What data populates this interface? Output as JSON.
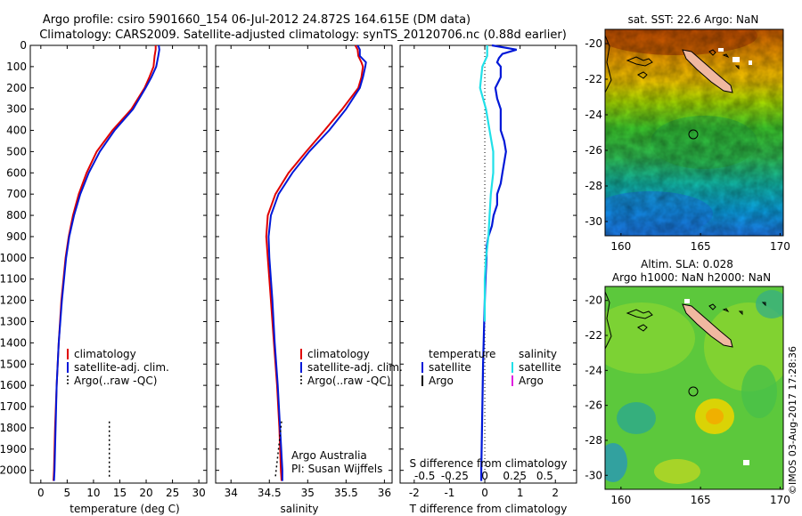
{
  "header": {
    "line1": "Argo profile: csiro 5901660_154 06-Jul-2012 24.872S 164.615E (DM data)",
    "line2": "Climatology: CARS2009. Satellite-adjusted climatology: synTS_20120706.nc (0.88d earlier)"
  },
  "credit": "©IMOS 03-Aug-2017 17:28:36",
  "colors": {
    "climatology": "#e00000",
    "satellite": "#0018d8",
    "argo": "#000000",
    "sal_satellite": "#20e0e8",
    "sal_argo": "#e020e0"
  },
  "chart_data": [
    {
      "type": "line",
      "id": "temperature",
      "xlabel": "temperature (deg C)",
      "xlim": [
        -2,
        31.5
      ],
      "ylim": [
        2060,
        0
      ],
      "xticks": [
        0,
        5,
        10,
        15,
        20,
        25,
        30
      ],
      "yticks": [
        0,
        100,
        200,
        300,
        400,
        500,
        600,
        700,
        800,
        900,
        1000,
        1100,
        1200,
        1300,
        1400,
        1500,
        1600,
        1700,
        1800,
        1900,
        2000
      ],
      "legend": [
        "climatology",
        "satellite-adj. clim.",
        "Argo(..raw -QC)"
      ],
      "series": [
        {
          "name": "climatology",
          "depth": [
            0,
            20,
            50,
            100,
            150,
            200,
            300,
            400,
            500,
            600,
            700,
            800,
            900,
            1000,
            1200,
            1400,
            1600,
            1800,
            2000,
            2050
          ],
          "values": [
            21.8,
            21.8,
            21.6,
            21.4,
            20.6,
            19.7,
            17.2,
            13.6,
            10.6,
            8.7,
            7.2,
            6.1,
            5.3,
            4.7,
            3.9,
            3.4,
            3.0,
            2.7,
            2.5,
            2.4
          ]
        },
        {
          "name": "satellite-adj. clim.",
          "depth": [
            0,
            20,
            50,
            100,
            150,
            200,
            300,
            400,
            500,
            600,
            700,
            800,
            900,
            1000,
            1200,
            1400,
            1600,
            1800,
            2000,
            2050
          ],
          "values": [
            22.4,
            22.5,
            22.3,
            21.9,
            21.0,
            19.9,
            17.5,
            14.0,
            11.2,
            9.1,
            7.5,
            6.3,
            5.4,
            4.8,
            4.0,
            3.4,
            3.0,
            2.8,
            2.6,
            2.5
          ]
        },
        {
          "name": "Argo",
          "depth": [
            1770,
            2030
          ],
          "values": [
            13.0,
            13.0
          ]
        }
      ]
    },
    {
      "type": "line",
      "id": "salinity",
      "xlabel": "salinity",
      "xlim": [
        33.8,
        36.1
      ],
      "ylim": [
        2060,
        0
      ],
      "xticks": [
        34,
        34.5,
        35,
        35.5,
        36
      ],
      "legend": [
        "climatology",
        "satellite-adj. clim.",
        "Argo(..raw -QC)"
      ],
      "annotation": [
        "Argo Australia",
        "PI: Susan Wijffels"
      ],
      "series": [
        {
          "name": "climatology",
          "depth": [
            0,
            20,
            50,
            80,
            100,
            150,
            200,
            300,
            400,
            500,
            600,
            700,
            800,
            900,
            1000,
            1200,
            1400,
            1600,
            1800,
            2000,
            2050
          ],
          "values": [
            35.62,
            35.65,
            35.66,
            35.7,
            35.72,
            35.7,
            35.66,
            35.45,
            35.22,
            34.98,
            34.75,
            34.58,
            34.48,
            34.46,
            34.48,
            34.52,
            34.56,
            34.6,
            34.63,
            34.65,
            34.66
          ]
        },
        {
          "name": "satellite-adj. clim.",
          "depth": [
            0,
            20,
            50,
            80,
            100,
            150,
            200,
            300,
            400,
            500,
            600,
            700,
            800,
            900,
            1000,
            1200,
            1400,
            1600,
            1800,
            2000,
            2050
          ],
          "values": [
            35.65,
            35.68,
            35.68,
            35.76,
            35.75,
            35.72,
            35.68,
            35.5,
            35.28,
            35.02,
            34.8,
            34.62,
            34.52,
            34.49,
            34.5,
            34.54,
            34.57,
            34.61,
            34.64,
            34.67,
            34.67
          ]
        },
        {
          "name": "Argo",
          "depth": [
            1770,
            2030
          ],
          "values": [
            34.66,
            34.58
          ]
        }
      ]
    },
    {
      "type": "line",
      "id": "difference",
      "xlabel": "T difference from climatology",
      "s_axis_label": "S difference from climatology",
      "xlim": [
        -2.4,
        2.6
      ],
      "ylim": [
        2060,
        0
      ],
      "xticks": [
        -2,
        -1,
        0,
        1,
        2
      ],
      "s_ticks": [
        "-0.5",
        "-0.25",
        "0",
        "0.25",
        "0.5"
      ],
      "legend_headers": [
        "temperature",
        "salinity"
      ],
      "legend_entries": [
        "satellite",
        "Argo",
        "satellite",
        "Argo"
      ],
      "series": [
        {
          "name": "T satellite",
          "depth": [
            0,
            20,
            40,
            60,
            80,
            100,
            150,
            200,
            250,
            300,
            350,
            400,
            450,
            500,
            550,
            600,
            650,
            700,
            750,
            800,
            850,
            900,
            950,
            1000,
            1100,
            1200,
            1500,
            2000,
            2050
          ],
          "values": [
            0.2,
            0.9,
            0.5,
            0.4,
            0.35,
            0.45,
            0.45,
            0.3,
            0.35,
            0.45,
            0.45,
            0.45,
            0.55,
            0.6,
            0.55,
            0.5,
            0.45,
            0.35,
            0.35,
            0.25,
            0.2,
            0.1,
            0.05,
            0.05,
            0.02,
            0.0,
            -0.05,
            -0.1,
            -0.1
          ]
        },
        {
          "name": "S satellite",
          "depth": [
            0,
            50,
            100,
            200,
            300,
            400,
            500,
            600,
            700,
            800,
            900,
            1000,
            1100,
            1200,
            1300
          ],
          "values": [
            0.02,
            0.02,
            -0.02,
            -0.04,
            0.01,
            0.04,
            0.07,
            0.07,
            0.05,
            0.04,
            0.03,
            0.01,
            0.0,
            0.0,
            0.0
          ]
        }
      ]
    },
    {
      "type": "heatmap",
      "id": "sst-map",
      "title": "sat. SST: 22.6 Argo: NaN",
      "xticks": [
        160,
        165,
        170
      ],
      "yticks": [
        -20,
        -22,
        -24,
        -26,
        -28,
        -30
      ],
      "argo_position": [
        164.615,
        -24.872
      ]
    },
    {
      "type": "heatmap",
      "id": "sla-map",
      "title_line1": "Altim. SLA: 0.028",
      "title_line2": "Argo h1000: NaN h2000: NaN",
      "xticks": [
        160,
        165,
        170
      ],
      "yticks": [
        -20,
        -22,
        -24,
        -26,
        -28,
        -30
      ],
      "argo_position": [
        164.615,
        -24.872
      ]
    }
  ]
}
